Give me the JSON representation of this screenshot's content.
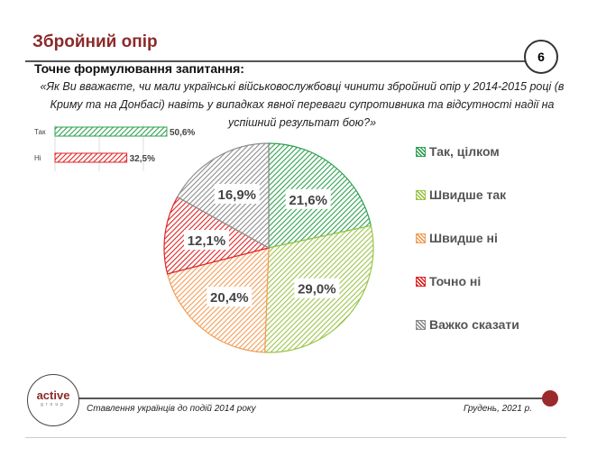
{
  "header": {
    "title": "Збройний опір",
    "page_number": "6"
  },
  "question": {
    "heading": "Точне формулювання запитання:",
    "text": "«Як Ви вважаєте, чи мали українські військовослужбовці чинити збройний опір у 2014-2015 році (в Криму та на Донбасі) навіть у випадках явної переваги супротивника та відсутності надії на успішний результат бою?»"
  },
  "footer": {
    "logo_text": "active",
    "logo_sub": "group",
    "subtitle": "Ставлення українців до подій 2014 року",
    "date": "Грудень, 2021 р."
  },
  "chart_data": [
    {
      "type": "pie",
      "fill": "hatched",
      "start": "top, clockwise",
      "categories": [
        "Так, цілком",
        "Швидше так",
        "Швидше ні",
        "Точно ні",
        "Важко сказати"
      ],
      "values": [
        21.6,
        29.0,
        20.4,
        12.1,
        16.9
      ],
      "labels": [
        "21,6%",
        "29,0%",
        "20,4%",
        "12,1%",
        "16,9%"
      ],
      "colors": [
        "#2ea24f",
        "#9cc44a",
        "#f29c55",
        "#e02424",
        "#8c8c8c"
      ],
      "legend": "right"
    },
    {
      "type": "bar",
      "orientation": "horizontal",
      "fill": "hatched",
      "categories": [
        "Так",
        "Ні"
      ],
      "values": [
        50.6,
        32.5
      ],
      "labels": [
        "50,6%",
        "32,5%"
      ],
      "colors": [
        "#2ea24f",
        "#e02424"
      ],
      "xlim": [
        0,
        60
      ],
      "grid": true
    }
  ]
}
